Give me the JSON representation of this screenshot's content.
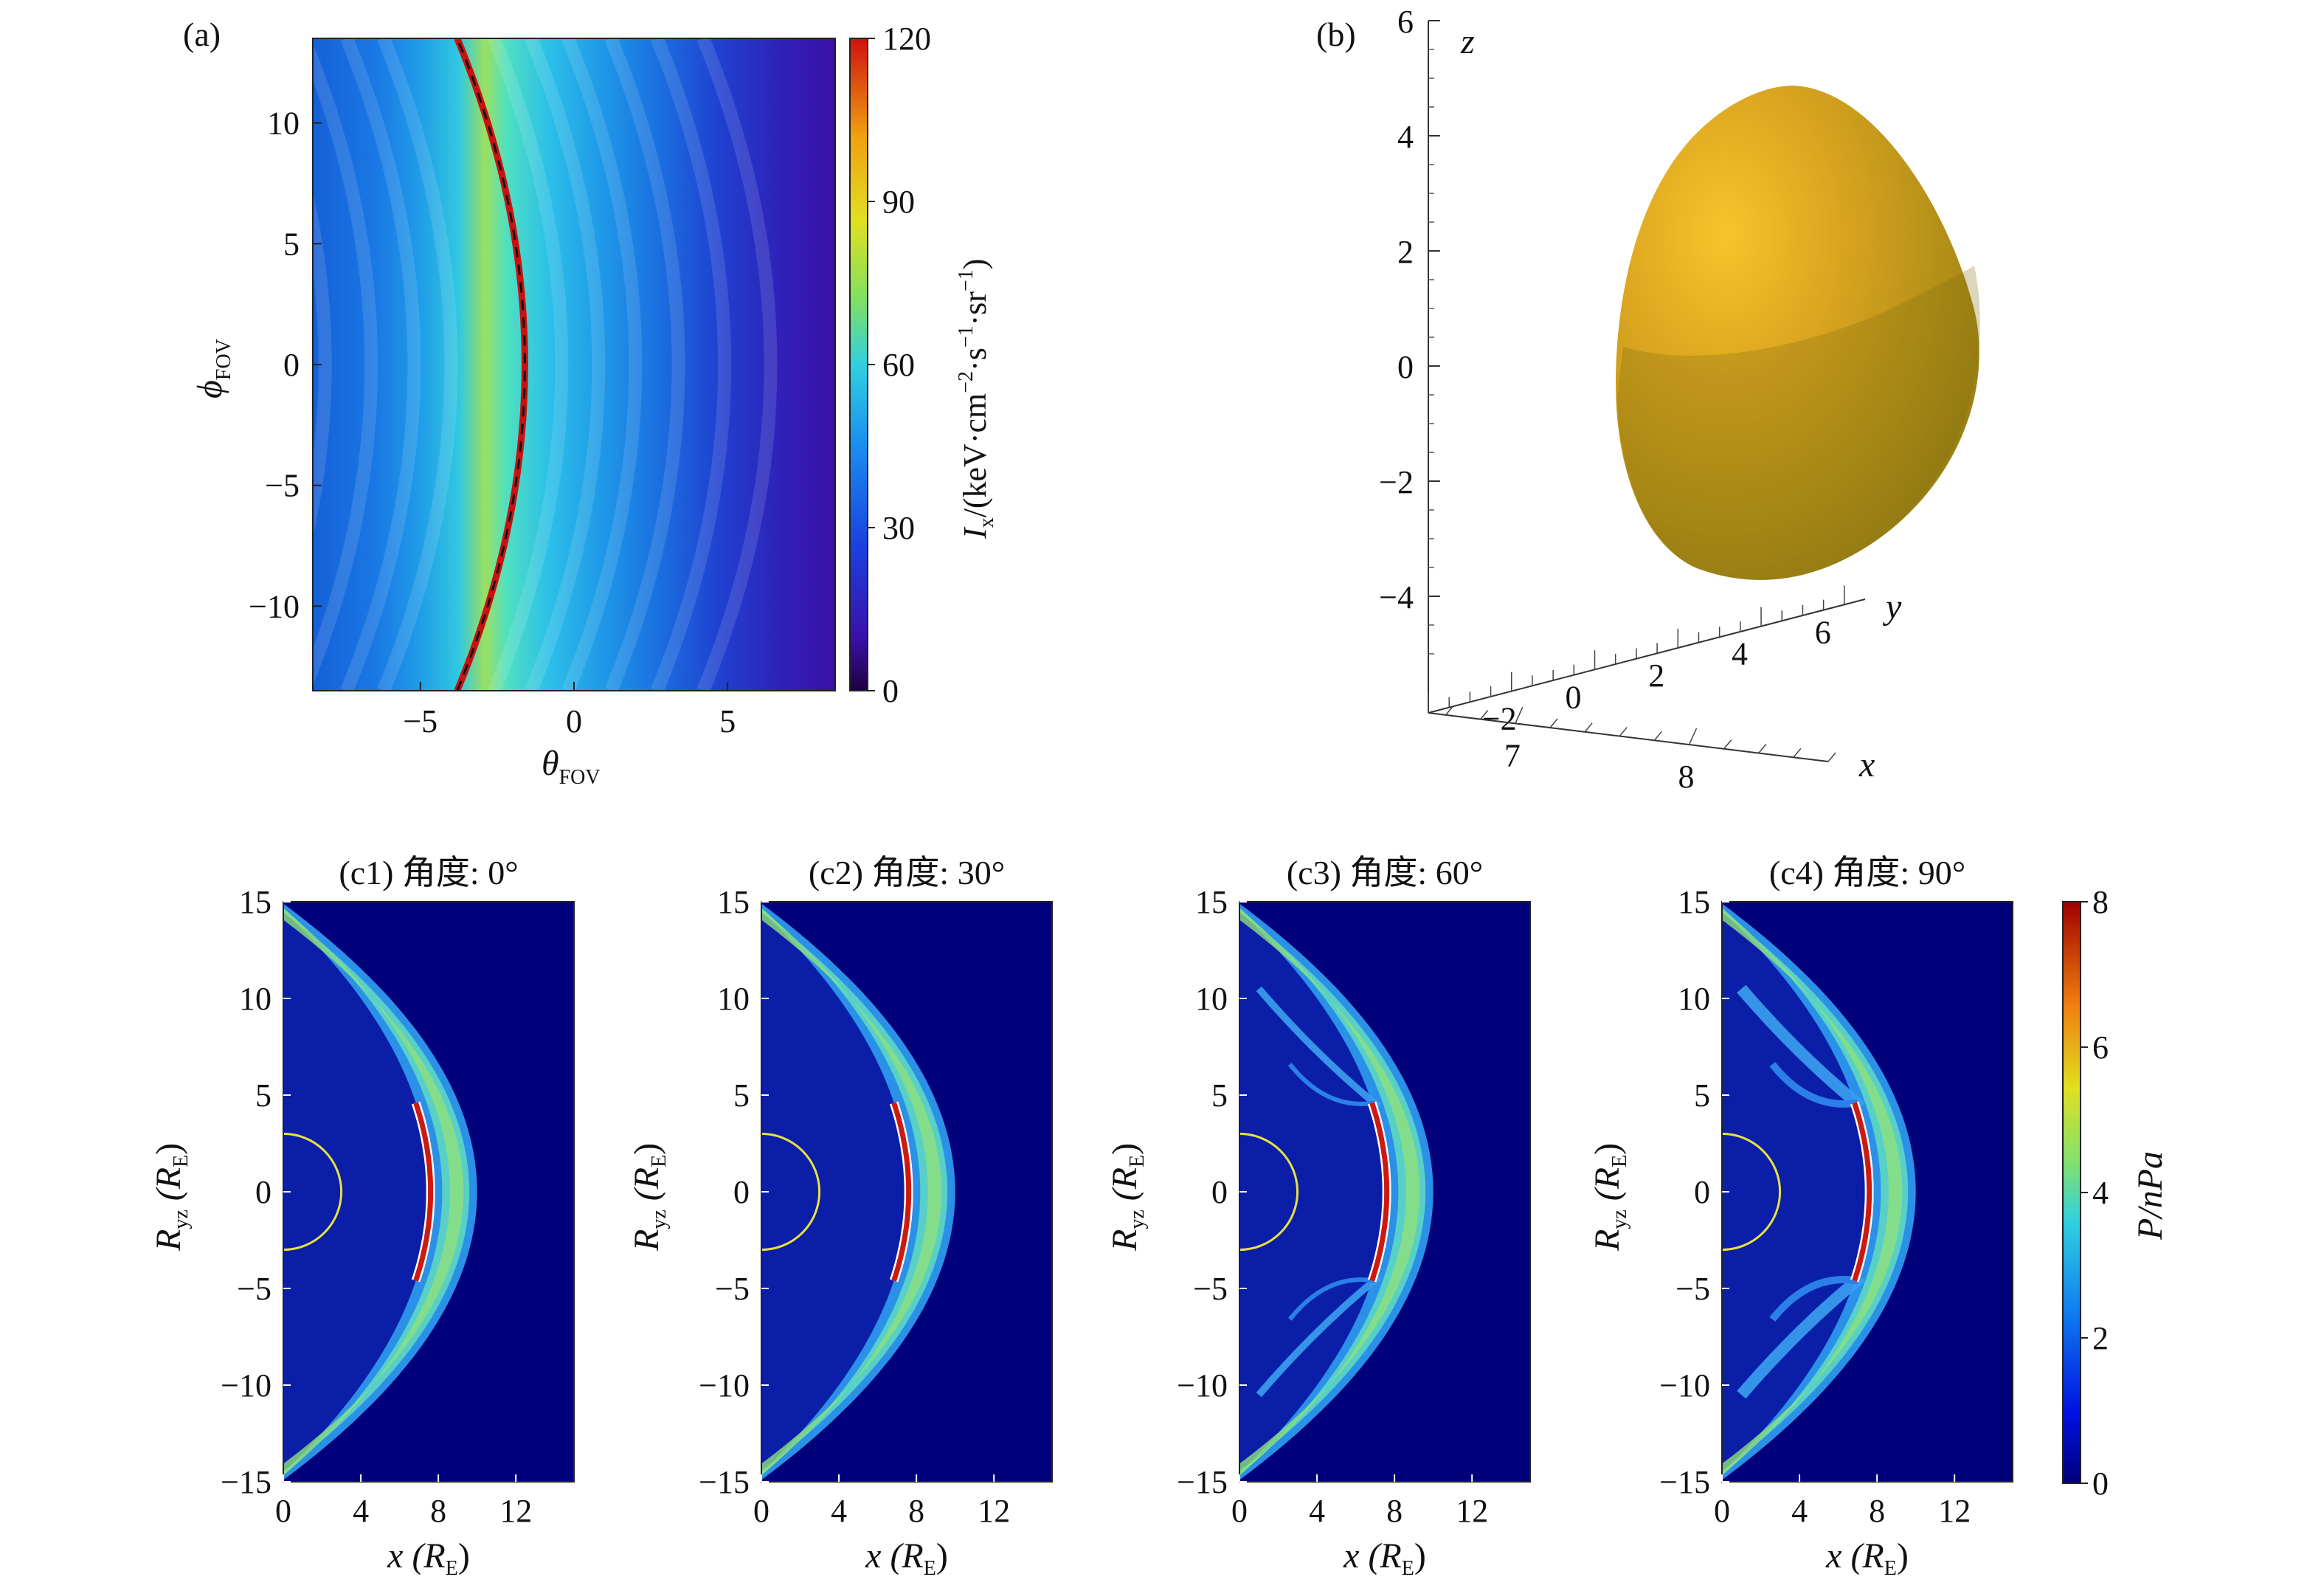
{
  "panel_a": {
    "label": "(a)",
    "xlabel_sym": "θ",
    "xlabel_sub": "FOV",
    "ylabel_sym": "ϕ",
    "ylabel_sub": "FOV",
    "cbar_label": "I",
    "cbar_label_sub": "x",
    "cbar_label_rest": "/(keV·cm",
    "cbar_label_e1": "−2",
    "cbar_label_mid": "·s",
    "cbar_label_e2": "−1",
    "cbar_label_mid2": "·sr",
    "cbar_label_e3": "−1",
    "cbar_label_end": ")",
    "cbar_ticks": [
      "0",
      "30",
      "60",
      "90",
      "120"
    ]
  },
  "panel_b": {
    "label": "(b)",
    "z_axis_label": "z",
    "y_axis_label": "y",
    "x_axis_label": "x",
    "z_ticks": [
      "6",
      "4",
      "2",
      "0",
      "−2",
      "−4"
    ],
    "y_ticks": [
      "−2",
      "0",
      "2",
      "4",
      "6"
    ],
    "x_ticks": [
      "7",
      "8"
    ],
    "surface_color": "#c9a21a"
  },
  "panel_c": {
    "panels": [
      {
        "title": "(c1) 角度: 0°",
        "angle": 0
      },
      {
        "title": "(c2) 角度: 30°",
        "angle": 30
      },
      {
        "title": "(c3) 角度: 60°",
        "angle": 60
      },
      {
        "title": "(c4) 角度: 90°",
        "angle": 90
      }
    ],
    "xlabel": "x (R",
    "xlabel_sub": "E",
    "xlabel_end": ")",
    "ylabel_main": "R",
    "ylabel_sub": "yz",
    "ylabel_mid": " (R",
    "ylabel_sub2": "E",
    "ylabel_end": ")",
    "cbar_label": "P/nPa",
    "cbar_ticks": [
      "0",
      "2",
      "4",
      "6",
      "8"
    ]
  },
  "colors": {
    "background_dark": "#00007a",
    "arc_red": "#cc1a10",
    "earth_yellow": "#e8e040"
  },
  "chart_data": [
    {
      "type": "heatmap",
      "title": "",
      "xlabel": "θFOV",
      "ylabel": "ϕFOV",
      "xlim": [
        -8.5,
        8.5
      ],
      "ylim": [
        -13.5,
        13.5
      ],
      "x_ticks": [
        -5,
        0,
        5
      ],
      "y_ticks": [
        -10,
        -5,
        0,
        5,
        10
      ],
      "colorbar": {
        "label": "Ix/(keV·cm−2·s−1·sr−1)",
        "range": [
          0,
          120
        ],
        "ticks": [
          0,
          30,
          60,
          90,
          120
        ]
      },
      "peak_curve": {
        "theta_at_phi0": -1.6,
        "theta_at_phi_edge": -3.8,
        "peak_value": 70
      }
    },
    {
      "type": "surface3d",
      "title": "",
      "axes": {
        "x": [
          6.5,
          8.7
        ],
        "y": [
          -3,
          6
        ],
        "z": [
          -5,
          6
        ]
      },
      "x_ticks": [
        7,
        8
      ],
      "y_ticks": [
        -2,
        0,
        2,
        4,
        6
      ],
      "z_ticks": [
        -4,
        -2,
        0,
        2,
        4,
        6
      ]
    },
    {
      "type": "heatmap",
      "title": "(c1) 角度: 0°",
      "xlabel": "x (RE)",
      "ylabel": "Ryz (RE)",
      "xlim": [
        0,
        15
      ],
      "ylim": [
        -15,
        15
      ],
      "x_ticks": [
        0,
        4,
        8,
        12
      ],
      "y_ticks": [
        -15,
        -10,
        -5,
        0,
        5,
        10,
        15
      ],
      "colorbar": {
        "label": "P/nPa",
        "range": [
          0,
          8
        ],
        "ticks": [
          0,
          2,
          4,
          6,
          8
        ]
      }
    },
    {
      "type": "heatmap",
      "title": "(c2) 角度: 30°",
      "xlabel": "x (RE)",
      "ylabel": "Ryz (RE)",
      "xlim": [
        0,
        15
      ],
      "ylim": [
        -15,
        15
      ],
      "x_ticks": [
        0,
        4,
        8,
        12
      ],
      "y_ticks": [
        -15,
        -10,
        -5,
        0,
        5,
        10,
        15
      ]
    },
    {
      "type": "heatmap",
      "title": "(c3) 角度: 60°",
      "xlabel": "x (RE)",
      "ylabel": "Ryz (RE)",
      "xlim": [
        0,
        15
      ],
      "ylim": [
        -15,
        15
      ],
      "x_ticks": [
        0,
        4,
        8,
        12
      ],
      "y_ticks": [
        -15,
        -10,
        -5,
        0,
        5,
        10,
        15
      ]
    },
    {
      "type": "heatmap",
      "title": "(c4) 角度: 90°",
      "xlabel": "x (RE)",
      "ylabel": "Ryz (RE)",
      "xlim": [
        0,
        15
      ],
      "ylim": [
        -15,
        15
      ],
      "x_ticks": [
        0,
        4,
        8,
        12
      ],
      "y_ticks": [
        -15,
        -10,
        -5,
        0,
        5,
        10,
        15
      ]
    }
  ]
}
